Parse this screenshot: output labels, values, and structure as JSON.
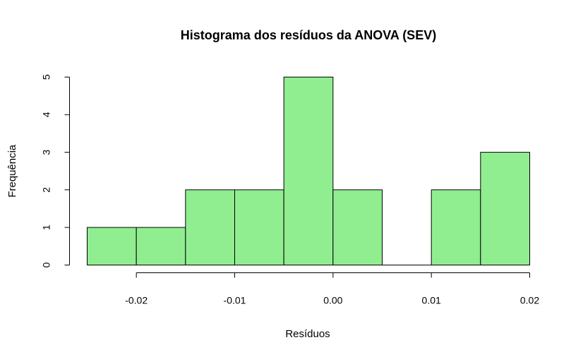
{
  "chart_data": {
    "type": "bar",
    "title": "Histograma dos resíduos da ANOVA (SEV)",
    "xlabel": "Resíduos",
    "ylabel": "Frequência",
    "bin_edges": [
      -0.025,
      -0.02,
      -0.015,
      -0.01,
      -0.005,
      0.0,
      0.005,
      0.01,
      0.015,
      0.02
    ],
    "values": [
      1,
      1,
      2,
      2,
      5,
      2,
      0,
      2,
      3
    ],
    "xticks": [
      -0.02,
      -0.01,
      0.0,
      0.01,
      0.02
    ],
    "xtick_labels": [
      "-0.02",
      "-0.01",
      "0.00",
      "0.01",
      "0.02"
    ],
    "yticks": [
      0,
      1,
      2,
      3,
      4,
      5
    ],
    "ytick_labels": [
      "0",
      "1",
      "2",
      "3",
      "4",
      "5"
    ],
    "xlim": [
      -0.025,
      0.02
    ],
    "ylim": [
      0,
      5
    ],
    "bar_color": "#90ee90",
    "grid": false
  }
}
